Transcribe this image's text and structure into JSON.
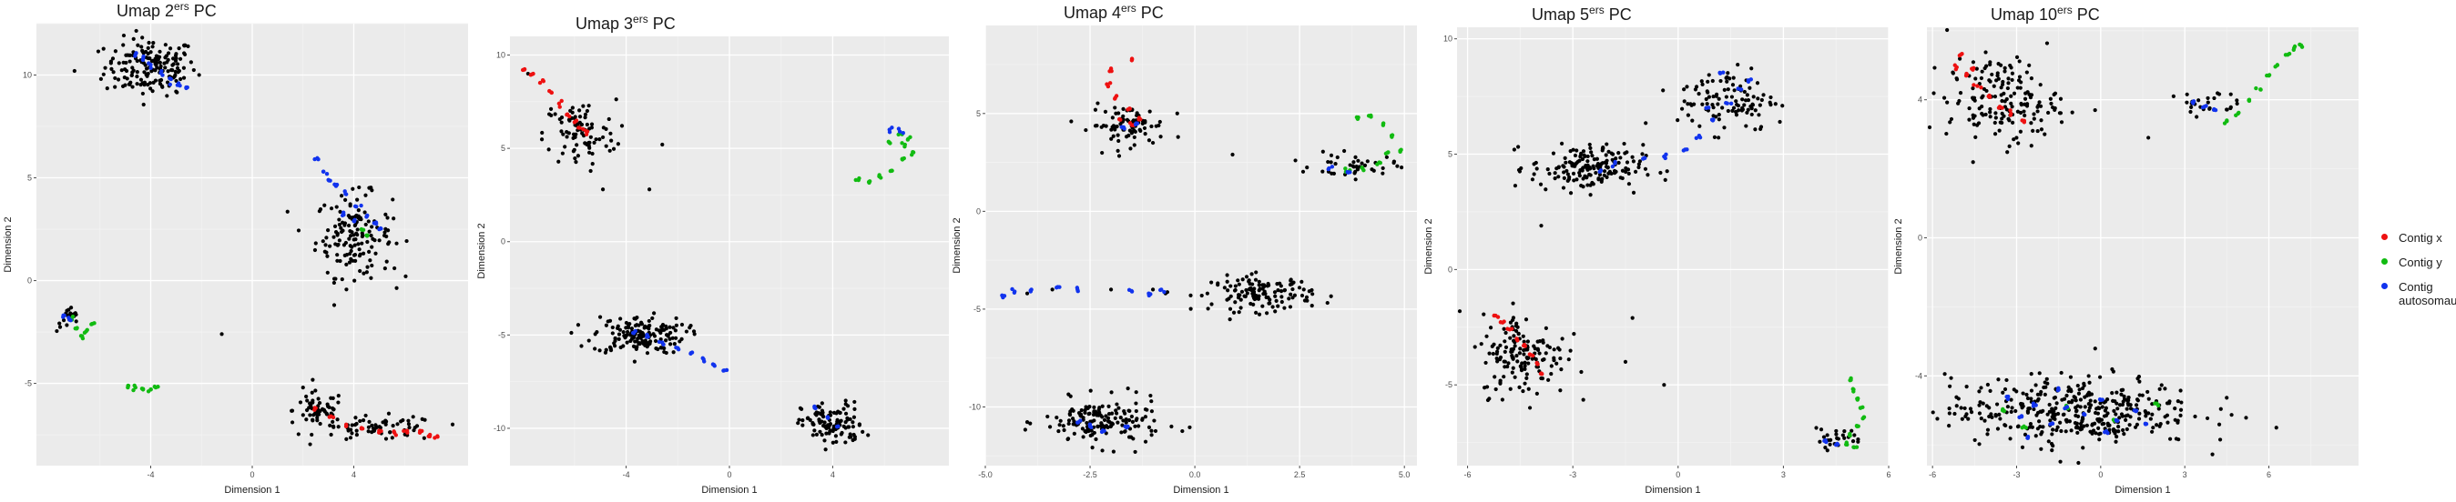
{
  "colors": {
    "panel_bg": "#ebebeb",
    "grid_major": "#ffffff",
    "grid_minor": "#f3f3f3",
    "text": "#1a1a1a",
    "axis_text": "#4d4d4d",
    "black_points": "#000000",
    "series_x": "#ee1111",
    "series_y": "#11bb11",
    "series_auto": "#1133ee"
  },
  "legend": {
    "items": [
      {
        "label": "Contig x",
        "color": "#ee1111"
      },
      {
        "label": "Contig y",
        "color": "#11bb11"
      },
      {
        "label": "Contig autosomaux",
        "color": "#1133ee"
      }
    ]
  },
  "chart_data": [
    {
      "type": "scatter",
      "title": "Umap 2ers PC",
      "title_prefix": "Umap 2",
      "title_sup": "ers",
      "title_suffix": " PC",
      "xlabel": "Dimension 1",
      "ylabel": "Dimension 2",
      "xlim": [
        -8.5,
        8.5
      ],
      "ylim": [
        -9,
        12.5
      ],
      "xticks": [
        -4,
        0,
        4
      ],
      "yticks": [
        -5,
        0,
        5,
        10
      ],
      "grid": true,
      "clusters": [
        {
          "cx": -4.0,
          "cy": 10.4,
          "sx": 0.9,
          "sy": 0.7,
          "n": 170
        },
        {
          "cx": 4.0,
          "cy": 2.2,
          "sx": 0.75,
          "sy": 1.0,
          "n": 150
        },
        {
          "cx": -7.2,
          "cy": -1.9,
          "sx": 0.25,
          "sy": 0.3,
          "n": 20
        },
        {
          "cx": 2.6,
          "cy": -6.3,
          "sx": 0.5,
          "sy": 0.45,
          "n": 60
        },
        {
          "cx": 5.0,
          "cy": -7.2,
          "sx": 1.2,
          "sy": 0.3,
          "n": 70
        }
      ],
      "scatter_points": [
        [
          -1.2,
          -2.6
        ],
        [
          -7.0,
          10.2
        ],
        [
          -3.0,
          9.2
        ],
        [
          5.6,
          0.6
        ],
        [
          2.0,
          -5.2
        ]
      ],
      "series": [
        {
          "key": "x",
          "x": [
            2.5,
            3.1,
            3.7,
            4.3,
            5.0,
            5.6,
            6.1,
            6.6,
            7.0,
            7.3
          ],
          "y": [
            -6.2,
            -6.6,
            -7.0,
            -7.2,
            -7.3,
            -7.4,
            -7.3,
            -7.4,
            -7.5,
            -7.6
          ]
        },
        {
          "key": "y",
          "x": [
            -7.1,
            -6.9,
            -6.7,
            -6.5,
            -6.3,
            -4.9,
            -4.6,
            -4.3,
            -4.0,
            -3.8,
            4.3,
            4.5
          ],
          "y": [
            -1.9,
            -2.3,
            -2.7,
            -2.4,
            -2.1,
            -5.2,
            -5.2,
            -5.3,
            -5.3,
            -5.2,
            2.5,
            2.2
          ]
        },
        {
          "key": "autosomaux",
          "x": [
            -4.6,
            -4.3,
            -4.0,
            -3.6,
            -3.2,
            -2.9,
            -2.6,
            2.6,
            2.8,
            3.0,
            3.3,
            3.7,
            4.1,
            4.5,
            4.8,
            5.0,
            -7.4,
            -7.2,
            4.0,
            3.6
          ],
          "y": [
            11.0,
            10.8,
            10.5,
            10.1,
            9.8,
            9.6,
            9.4,
            5.9,
            5.3,
            4.9,
            4.6,
            4.2,
            3.6,
            3.1,
            2.8,
            2.5,
            -1.7,
            -1.9,
            2.9,
            3.2
          ]
        }
      ]
    },
    {
      "type": "scatter",
      "title": "Umap 3ers PC",
      "title_prefix": "Umap 3",
      "title_sup": "ers",
      "title_suffix": " PC",
      "xlabel": "Dimension 1",
      "ylabel": "Dimension 2",
      "xlim": [
        -8.5,
        8.5
      ],
      "ylim": [
        -12,
        11
      ],
      "xticks": [
        -4,
        0,
        4
      ],
      "yticks": [
        -10,
        -5,
        0,
        5,
        10
      ],
      "grid": true,
      "clusters": [
        {
          "cx": -5.8,
          "cy": 5.8,
          "sx": 0.7,
          "sy": 0.9,
          "n": 90
        },
        {
          "cx": -3.5,
          "cy": -5.0,
          "sx": 0.9,
          "sy": 0.5,
          "n": 160
        },
        {
          "cx": 4.0,
          "cy": -9.8,
          "sx": 0.6,
          "sy": 0.6,
          "n": 110
        }
      ],
      "scatter_points": [
        [
          -2.6,
          5.2
        ],
        [
          -4.9,
          2.8
        ],
        [
          -3.1,
          2.8
        ],
        [
          -7.8,
          9.0
        ]
      ],
      "series": [
        {
          "key": "x",
          "x": [
            -8.0,
            -7.6,
            -7.2,
            -6.9,
            -6.6,
            -6.3,
            -6.0,
            -5.8,
            -5.5
          ],
          "y": [
            9.2,
            9.0,
            8.6,
            8.0,
            7.4,
            6.8,
            6.4,
            6.1,
            5.9
          ]
        },
        {
          "key": "y",
          "x": [
            5.0,
            5.4,
            5.8,
            6.3,
            6.7,
            6.8,
            6.6,
            6.2
          ],
          "y": [
            3.3,
            3.2,
            3.5,
            3.8,
            4.4,
            5.2,
            5.8,
            5.3
          ],
          "pts": [
            [
              7.1,
              4.8
            ],
            [
              7.0,
              5.6
            ]
          ]
        },
        {
          "key": "autosomaux",
          "x": [
            -3.7,
            -3.2,
            -2.6,
            -2.0,
            -1.5,
            -1.0,
            -0.6,
            -0.2,
            6.2,
            6.6,
            3.3,
            3.8,
            4.2
          ],
          "y": [
            -4.9,
            -5.1,
            -5.4,
            -5.7,
            -6.0,
            -6.3,
            -6.6,
            -6.9,
            6.0,
            5.9,
            -8.9,
            -9.4,
            -9.9
          ]
        }
      ]
    },
    {
      "type": "scatter",
      "title": "Umap 4ers PC",
      "title_prefix": "Umap 4",
      "title_sup": "ers",
      "title_suffix": " PC",
      "xlabel": "Dimension 1",
      "ylabel": "Dimension 2",
      "xlim": [
        -5.0,
        5.3
      ],
      "ylim": [
        -13,
        9.5
      ],
      "xticks": [
        -5.0,
        -2.5,
        0.0,
        2.5,
        5.0
      ],
      "xtick_labels": [
        "-5.0",
        "-2.5",
        "0.0",
        "2.5",
        "5.0"
      ],
      "yticks": [
        -10,
        -5,
        0,
        5
      ],
      "grid": true,
      "clusters": [
        {
          "cx": -1.6,
          "cy": 4.4,
          "sx": 0.45,
          "sy": 0.5,
          "n": 80
        },
        {
          "cx": 1.6,
          "cy": -4.2,
          "sx": 0.6,
          "sy": 0.45,
          "n": 130
        },
        {
          "cx": -2.2,
          "cy": -10.8,
          "sx": 0.7,
          "sy": 0.6,
          "n": 160
        },
        {
          "cx": 3.8,
          "cy": 2.3,
          "sx": 0.5,
          "sy": 0.3,
          "n": 40
        }
      ],
      "scatter_points": [
        [
          0.9,
          2.9
        ],
        [
          2.4,
          2.6
        ],
        [
          -0.4,
          3.8
        ],
        [
          -1.0,
          3.5
        ],
        [
          -4.0,
          -4.2
        ],
        [
          -3.4,
          -4.0
        ],
        [
          -2.0,
          -4.0
        ],
        [
          -1.0,
          -4.0
        ],
        [
          0.3,
          -4.2
        ],
        [
          -0.7,
          -4.2
        ],
        [
          -0.1,
          -4.3
        ]
      ],
      "series": [
        {
          "key": "x",
          "x": [
            -2.0,
            -2.1,
            -1.9,
            -1.6,
            -1.3,
            -1.5,
            -1.8,
            -1.5
          ],
          "y": [
            7.3,
            6.5,
            5.8,
            5.2,
            4.7,
            4.4,
            4.7,
            7.8
          ]
        },
        {
          "key": "y",
          "x": [
            3.9,
            4.2,
            4.5,
            4.7,
            4.6,
            4.4,
            4.0,
            3.7,
            4.9
          ],
          "y": [
            4.8,
            4.9,
            4.5,
            3.8,
            3.0,
            2.5,
            2.2,
            2.1,
            3.1
          ]
        },
        {
          "key": "autosomaux",
          "x": [
            -4.6,
            -4.3,
            -3.9,
            -3.3,
            -2.8,
            -1.5,
            -1.1,
            -0.8,
            -2.8,
            -2.5,
            -2.2,
            -1.6,
            3.2,
            3.7,
            -1.7,
            -1.4
          ],
          "y": [
            -4.3,
            -4.1,
            -4.0,
            -3.9,
            -4.0,
            -4.1,
            -4.2,
            -4.0,
            -10.8,
            -11.0,
            -11.2,
            -11.0,
            2.2,
            2.0,
            4.3,
            4.5
          ]
        }
      ]
    },
    {
      "type": "scatter",
      "title": "Umap 5ers PC",
      "title_prefix": "Umap 5",
      "title_sup": "ers",
      "title_suffix": " PC",
      "xlabel": "Dimension 1",
      "ylabel": "Dimension 2",
      "xlim": [
        -6.3,
        6.0
      ],
      "ylim": [
        -8.5,
        10.5
      ],
      "xticks": [
        -6,
        -3,
        0,
        3,
        6
      ],
      "yticks": [
        -5,
        0,
        5,
        10
      ],
      "grid": true,
      "clusters": [
        {
          "cx": -2.6,
          "cy": 4.4,
          "sx": 0.8,
          "sy": 0.5,
          "n": 170
        },
        {
          "cx": 1.4,
          "cy": 7.4,
          "sx": 0.7,
          "sy": 0.7,
          "n": 110
        },
        {
          "cx": -4.4,
          "cy": -3.7,
          "sx": 0.6,
          "sy": 0.9,
          "n": 150
        },
        {
          "cx": 4.5,
          "cy": -7.3,
          "sx": 0.4,
          "sy": 0.2,
          "n": 25
        }
      ],
      "scatter_points": [
        [
          -1.5,
          -4.0
        ],
        [
          -0.4,
          -5.0
        ],
        [
          -1.3,
          -2.1
        ],
        [
          -3.3,
          -3.0
        ],
        [
          2.9,
          6.4
        ],
        [
          -3.9,
          1.9
        ]
      ],
      "series": [
        {
          "key": "x",
          "x": [
            -5.2,
            -5.0,
            -4.8,
            -4.6,
            -4.4,
            -4.2,
            -4.0,
            -3.9
          ],
          "y": [
            -2.0,
            -2.3,
            -2.6,
            -3.0,
            -3.3,
            -3.7,
            -4.1,
            -4.5
          ]
        },
        {
          "key": "y",
          "x": [
            4.9,
            5.0,
            5.1,
            5.2,
            5.3,
            5.1,
            4.9,
            4.8,
            5.0
          ],
          "y": [
            -4.8,
            -5.2,
            -5.6,
            -6.0,
            -6.4,
            -6.8,
            -7.2,
            -7.5,
            -7.7
          ]
        },
        {
          "key": "autosomaux",
          "x": [
            -2.2,
            -1.8,
            -1.0,
            -0.4,
            0.2,
            0.6,
            1.0,
            1.4,
            1.8,
            2.0,
            1.2,
            0.8,
            4.2,
            4.5
          ],
          "y": [
            4.3,
            4.6,
            4.8,
            4.9,
            5.2,
            5.8,
            6.5,
            7.2,
            7.8,
            8.2,
            8.5,
            7.0,
            -7.4,
            -7.6
          ]
        }
      ]
    },
    {
      "type": "scatter",
      "title": "Umap 10ers PC",
      "title_prefix": "Umap 10",
      "title_sup": "ers",
      "title_suffix": " PC",
      "xlabel": "Dimension 1",
      "ylabel": "Dimension 2",
      "xlim": [
        -6.2,
        9.2
      ],
      "ylim": [
        -6.6,
        6.1
      ],
      "xticks": [
        -6,
        -3,
        0,
        3,
        6
      ],
      "yticks": [
        -4,
        0,
        4
      ],
      "grid": true,
      "clusters": [
        {
          "cx": -3.5,
          "cy": 4.0,
          "sx": 1.0,
          "sy": 0.6,
          "n": 170
        },
        {
          "cx": -1.0,
          "cy": -5.0,
          "sx": 2.2,
          "sy": 0.5,
          "n": 380
        },
        {
          "cx": 3.8,
          "cy": 3.9,
          "sx": 0.5,
          "sy": 0.2,
          "n": 25
        }
      ],
      "scatter_points": [
        [
          -0.2,
          3.7
        ],
        [
          1.7,
          2.9
        ],
        [
          2.6,
          4.1
        ],
        [
          -2.0,
          3.0
        ]
      ],
      "series": [
        {
          "key": "x",
          "x": [
            -5.2,
            -4.8,
            -4.4,
            -4.0,
            -3.6,
            -3.2,
            -2.8,
            -5.0,
            -4.6
          ],
          "y": [
            5.0,
            4.7,
            4.4,
            4.1,
            3.8,
            3.6,
            3.4,
            5.3,
            4.9
          ]
        },
        {
          "key": "y",
          "x": [
            4.5,
            4.9,
            5.3,
            5.7,
            6.0,
            6.3,
            6.6,
            6.9,
            7.1,
            -3.5,
            -2.8,
            -1.2,
            0.5,
            2.0
          ],
          "y": [
            3.4,
            3.6,
            4.0,
            4.3,
            4.7,
            5.0,
            5.3,
            5.5,
            5.6,
            -5.0,
            -5.5,
            -4.9,
            -5.3,
            -4.8
          ]
        },
        {
          "key": "autosomaux",
          "x": [
            3.3,
            3.7,
            4.1,
            -3.3,
            -2.9,
            -2.4,
            -1.8,
            -1.2,
            -0.6,
            0.0,
            0.6,
            1.2,
            1.6,
            -2.6,
            -1.5,
            0.2
          ],
          "y": [
            3.9,
            3.8,
            3.7,
            -4.6,
            -5.2,
            -4.8,
            -5.4,
            -4.9,
            -5.1,
            -4.7,
            -5.3,
            -5.0,
            -5.4,
            -5.8,
            -4.4,
            -5.6
          ]
        }
      ]
    }
  ]
}
